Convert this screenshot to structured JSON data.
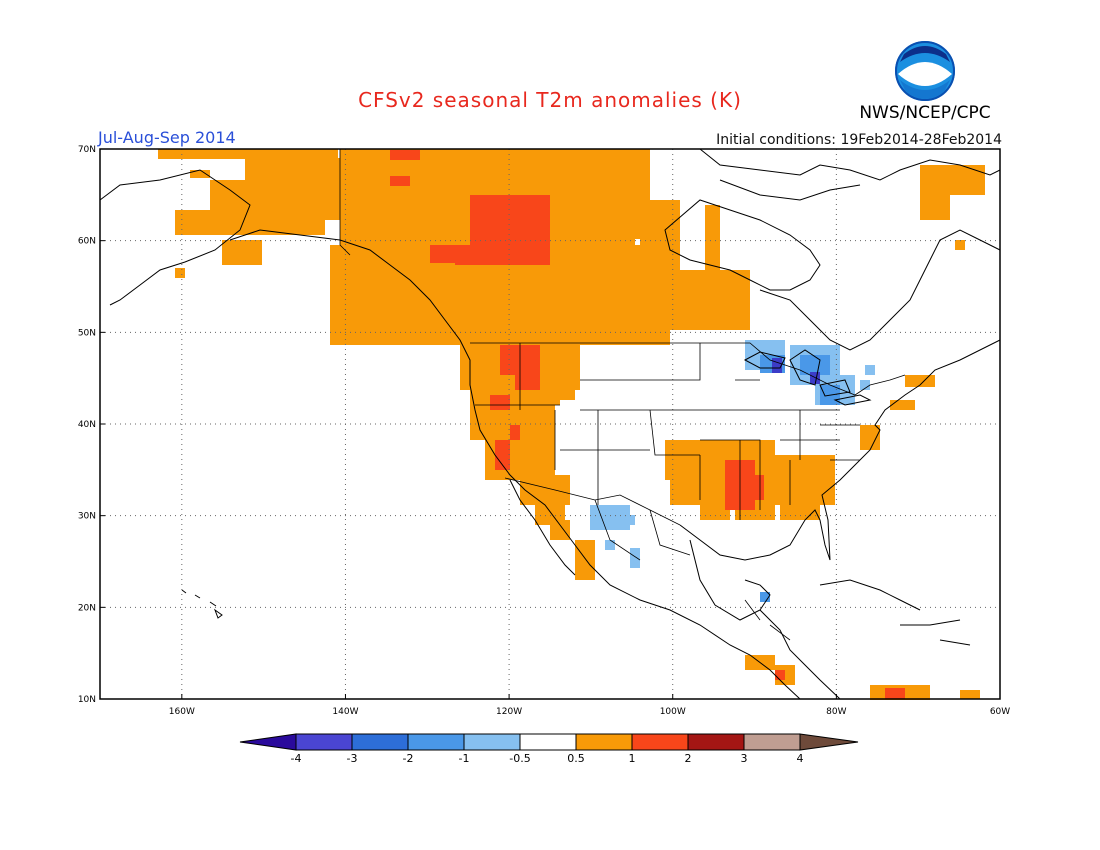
{
  "title": "CFSv2 seasonal T2m anomalies (K)",
  "agency": "NWS/NCEP/CPC",
  "logo_text": "NOAA",
  "season": "Jul-Aug-Sep 2014",
  "initial_conditions": "Initial conditions: 19Feb2014-28Feb2014",
  "lat_labels": [
    "70N",
    "60N",
    "50N",
    "40N",
    "30N",
    "20N",
    "10N"
  ],
  "lon_labels": [
    "160W",
    "140W",
    "120W",
    "100W",
    "80W",
    "60W"
  ],
  "colorbar": {
    "labels": [
      "-4",
      "-3",
      "-2",
      "-1",
      "-0.5",
      "0.5",
      "1",
      "2",
      "3",
      "4"
    ],
    "colors": [
      "#2a0a9c",
      "#4a45d2",
      "#2d6ed8",
      "#4a98e8",
      "#86c0f0",
      "#ffffff",
      "#f89a08",
      "#f8461a",
      "#a41614",
      "#c09e92",
      "#6e4a3a"
    ]
  },
  "colors": {
    "warm_05_1": "#f89a08",
    "warm_1_2": "#f8461a",
    "warm_2_3": "#a41614",
    "cool_05_1": "#86c0f0",
    "cool_1_2": "#4a98e8",
    "cool_2_3": "#3c3cc8",
    "title_red": "#e8281e",
    "season_blue": "#2a4fd8"
  }
}
